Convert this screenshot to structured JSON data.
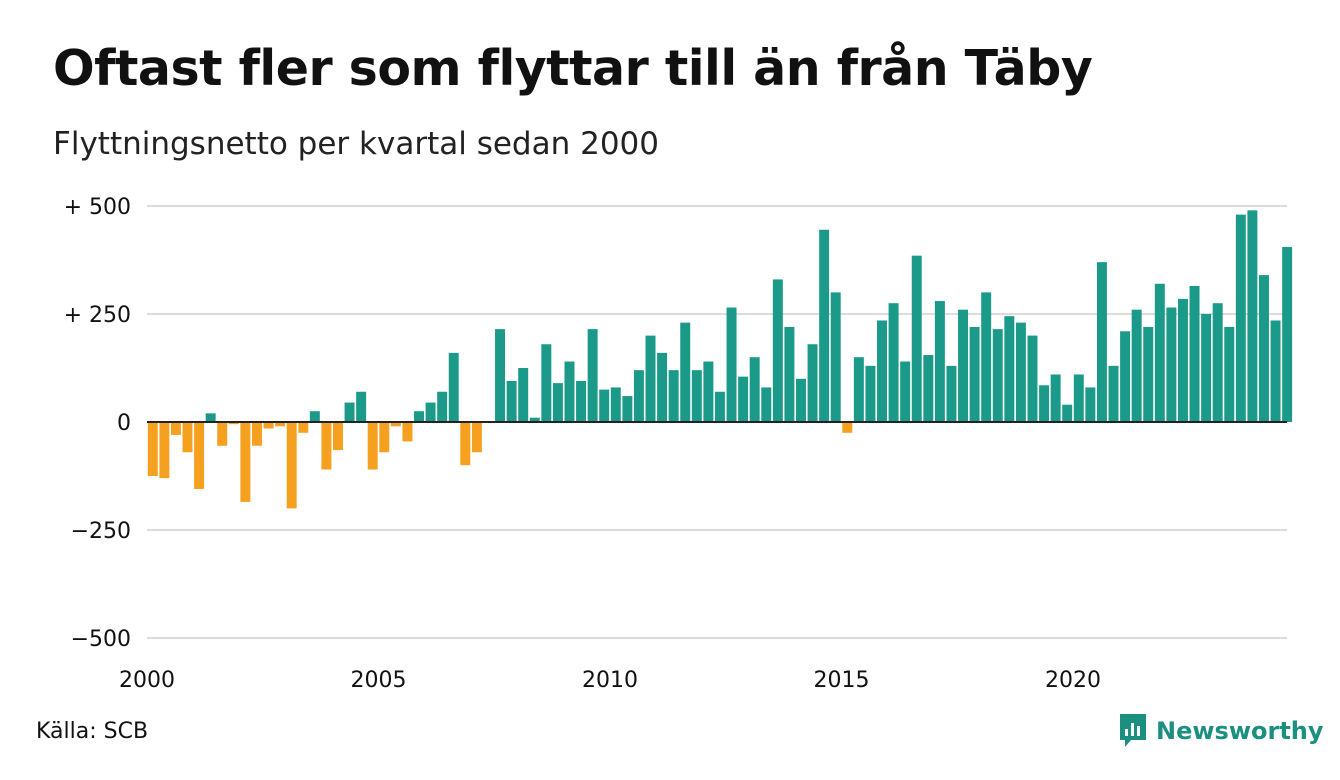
{
  "title": "Oftast fler som flyttar till än från Täby",
  "subtitle": "Flyttningsnetto per kvartal sedan 2000",
  "source": "Källa: SCB",
  "brand": "Newsworthy",
  "colors": {
    "positive": "#1b9a8a",
    "negative": "#f5a01f",
    "grid": "#dcdcdc",
    "zero_line": "#222222",
    "brand": "#1b8f80"
  },
  "chart_data": {
    "type": "bar",
    "title": "Oftast fler som flyttar till än från Täby",
    "subtitle": "Flyttningsnetto per kvartal sedan 2000",
    "xlabel": "",
    "ylabel": "",
    "ylim": [
      -500,
      500
    ],
    "grid": true,
    "y_ticks": [
      {
        "value": 500,
        "label": "+ 500"
      },
      {
        "value": 250,
        "label": "+ 250"
      },
      {
        "value": 0,
        "label": "0"
      },
      {
        "value": -250,
        "label": "−250"
      },
      {
        "value": -500,
        "label": "−500"
      }
    ],
    "x_ticks": [
      {
        "value": 2000,
        "label": "2000"
      },
      {
        "value": 2005,
        "label": "2005"
      },
      {
        "value": 2010,
        "label": "2010"
      },
      {
        "value": 2015,
        "label": "2015"
      },
      {
        "value": 2020,
        "label": "2020"
      }
    ],
    "x_start": 2000,
    "periods_per_year": 4,
    "values": [
      -125,
      -130,
      -30,
      -70,
      -155,
      20,
      -55,
      -5,
      -185,
      -55,
      -15,
      -10,
      -200,
      -25,
      25,
      -110,
      -65,
      45,
      70,
      -110,
      -70,
      -10,
      -45,
      25,
      45,
      70,
      160,
      -100,
      -70,
      0,
      215,
      95,
      125,
      10,
      180,
      90,
      140,
      95,
      215,
      75,
      80,
      60,
      120,
      200,
      160,
      120,
      230,
      120,
      140,
      70,
      265,
      105,
      150,
      80,
      330,
      220,
      100,
      180,
      445,
      300,
      -25,
      150,
      130,
      235,
      275,
      140,
      385,
      155,
      280,
      130,
      260,
      220,
      300,
      215,
      245,
      230,
      200,
      85,
      110,
      40,
      110,
      80,
      370,
      130,
      210,
      260,
      220,
      320,
      265,
      285,
      315,
      250,
      275,
      220,
      480,
      490,
      340,
      235,
      405
    ]
  }
}
